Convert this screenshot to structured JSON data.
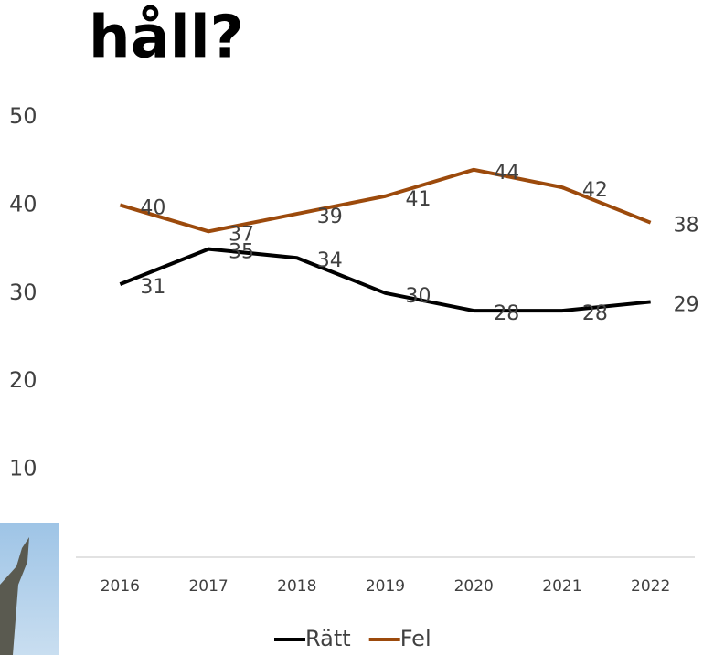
{
  "chart_data": {
    "type": "line",
    "title": "håll?",
    "categories": [
      "2016",
      "2017",
      "2018",
      "2019",
      "2020",
      "2021",
      "2022"
    ],
    "series": [
      {
        "name": "Rätt",
        "color": "#000000",
        "values": [
          31,
          35,
          34,
          30,
          28,
          28,
          29
        ]
      },
      {
        "name": "Fel",
        "color": "#9c4a0c",
        "values": [
          40,
          37,
          39,
          41,
          44,
          42,
          38
        ]
      }
    ],
    "ylim": [
      0,
      50
    ],
    "yticks": [
      10,
      20,
      30,
      40,
      50
    ],
    "grid": false,
    "legend": "bottom"
  }
}
